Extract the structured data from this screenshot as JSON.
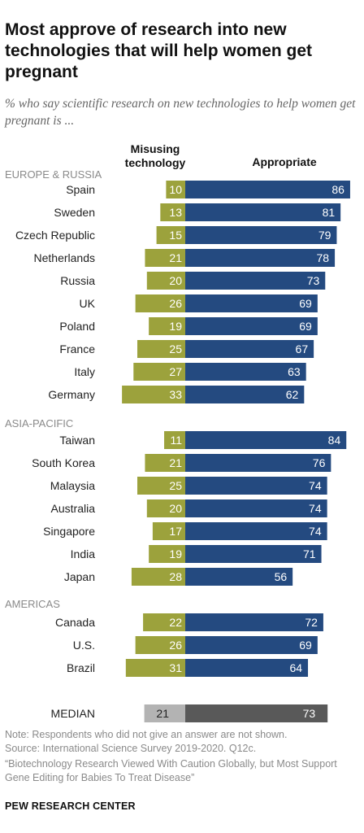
{
  "title": "Most approve of research into new technologies that will help women get pregnant",
  "subtitle": "% who say scientific research on new technologies to help women get pregnant is ...",
  "colors": {
    "misusing": "#9ca23c",
    "appropriate": "#244a80",
    "median_misusing": "#b3b3b3",
    "median_appropriate": "#595959",
    "label_text": "#222222",
    "region_text": "#8a8a8a",
    "value_text": "#ffffff"
  },
  "chart_data": {
    "type": "bar",
    "orientation": "horizontal",
    "layout": "diverging",
    "series_names": [
      "Misusing technology",
      "Appropriate"
    ],
    "groups": [
      {
        "name": "EUROPE & RUSSIA",
        "rows": [
          {
            "label": "Spain",
            "misusing": 10,
            "appropriate": 86
          },
          {
            "label": "Sweden",
            "misusing": 13,
            "appropriate": 81
          },
          {
            "label": "Czech Republic",
            "misusing": 15,
            "appropriate": 79
          },
          {
            "label": "Netherlands",
            "misusing": 21,
            "appropriate": 78
          },
          {
            "label": "Russia",
            "misusing": 20,
            "appropriate": 73
          },
          {
            "label": "UK",
            "misusing": 26,
            "appropriate": 69
          },
          {
            "label": "Poland",
            "misusing": 19,
            "appropriate": 69
          },
          {
            "label": "France",
            "misusing": 25,
            "appropriate": 67
          },
          {
            "label": "Italy",
            "misusing": 27,
            "appropriate": 63
          },
          {
            "label": "Germany",
            "misusing": 33,
            "appropriate": 62
          }
        ]
      },
      {
        "name": "ASIA-PACIFIC",
        "rows": [
          {
            "label": "Taiwan",
            "misusing": 11,
            "appropriate": 84
          },
          {
            "label": "South Korea",
            "misusing": 21,
            "appropriate": 76
          },
          {
            "label": "Malaysia",
            "misusing": 25,
            "appropriate": 74
          },
          {
            "label": "Australia",
            "misusing": 20,
            "appropriate": 74
          },
          {
            "label": "Singapore",
            "misusing": 17,
            "appropriate": 74
          },
          {
            "label": "India",
            "misusing": 19,
            "appropriate": 71
          },
          {
            "label": "Japan",
            "misusing": 28,
            "appropriate": 56
          }
        ]
      },
      {
        "name": "AMERICAS",
        "rows": [
          {
            "label": "Canada",
            "misusing": 22,
            "appropriate": 72
          },
          {
            "label": "U.S.",
            "misusing": 26,
            "appropriate": 69
          },
          {
            "label": "Brazil",
            "misusing": 31,
            "appropriate": 64
          }
        ]
      }
    ],
    "median": {
      "label": "MEDIAN",
      "misusing": 21,
      "appropriate": 73
    }
  },
  "footer": {
    "note": "Note: Respondents who did not give an answer are not shown.",
    "source": "Source: International Science Survey 2019-2020. Q12c.",
    "citation": "“Biotechnology Research Viewed With Caution Globally, but Most Support Gene Editing for Babies To Treat Disease”",
    "brand": "PEW RESEARCH CENTER"
  }
}
